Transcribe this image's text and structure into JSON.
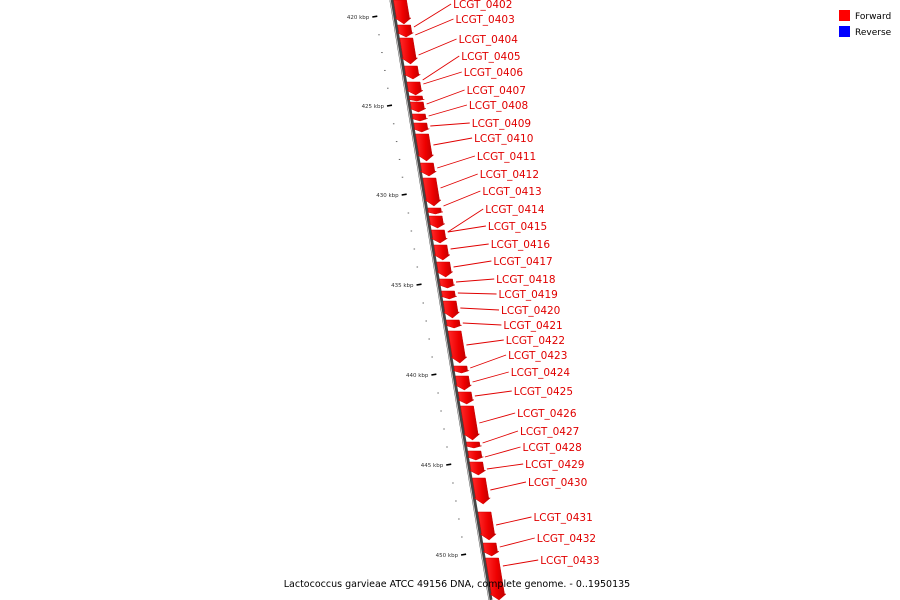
{
  "legend": {
    "items": [
      {
        "label": "Forward",
        "color": "#ff0000"
      },
      {
        "label": "Reverse",
        "color": "#0000ff"
      }
    ]
  },
  "caption": "Lactococcus garvieae ATCC 49156 DNA, complete genome. - 0..1950135",
  "axis": {
    "ticks": [
      "420 kbp",
      "425 kbp",
      "430 kbp",
      "435 kbp",
      "440 kbp",
      "445 kbp",
      "450 kbp"
    ]
  },
  "genes": [
    {
      "name": "LCGT_0402",
      "strand": "forward"
    },
    {
      "name": "LCGT_0403",
      "strand": "forward"
    },
    {
      "name": "LCGT_0404",
      "strand": "forward"
    },
    {
      "name": "LCGT_0405",
      "strand": "forward"
    },
    {
      "name": "LCGT_0406",
      "strand": "forward"
    },
    {
      "name": "LCGT_0407",
      "strand": "forward"
    },
    {
      "name": "LCGT_0408",
      "strand": "forward"
    },
    {
      "name": "LCGT_0409",
      "strand": "forward"
    },
    {
      "name": "LCGT_0410",
      "strand": "forward"
    },
    {
      "name": "LCGT_0411",
      "strand": "forward"
    },
    {
      "name": "LCGT_0412",
      "strand": "forward"
    },
    {
      "name": "LCGT_0413",
      "strand": "forward"
    },
    {
      "name": "LCGT_0414",
      "strand": "forward"
    },
    {
      "name": "LCGT_0415",
      "strand": "forward"
    },
    {
      "name": "LCGT_0416",
      "strand": "forward"
    },
    {
      "name": "LCGT_0417",
      "strand": "forward"
    },
    {
      "name": "LCGT_0418",
      "strand": "forward"
    },
    {
      "name": "LCGT_0419",
      "strand": "forward"
    },
    {
      "name": "LCGT_0420",
      "strand": "forward"
    },
    {
      "name": "LCGT_0421",
      "strand": "forward"
    },
    {
      "name": "LCGT_0422",
      "strand": "forward"
    },
    {
      "name": "LCGT_0423",
      "strand": "forward"
    },
    {
      "name": "LCGT_0424",
      "strand": "forward"
    },
    {
      "name": "LCGT_0425",
      "strand": "forward"
    },
    {
      "name": "LCGT_0426",
      "strand": "forward"
    },
    {
      "name": "LCGT_0427",
      "strand": "forward"
    },
    {
      "name": "LCGT_0428",
      "strand": "forward"
    },
    {
      "name": "LCGT_0429",
      "strand": "forward"
    },
    {
      "name": "LCGT_0430",
      "strand": "forward"
    },
    {
      "name": "LCGT_0431",
      "strand": "forward"
    },
    {
      "name": "LCGT_0432",
      "strand": "forward"
    },
    {
      "name": "LCGT_0433",
      "strand": "forward"
    }
  ]
}
